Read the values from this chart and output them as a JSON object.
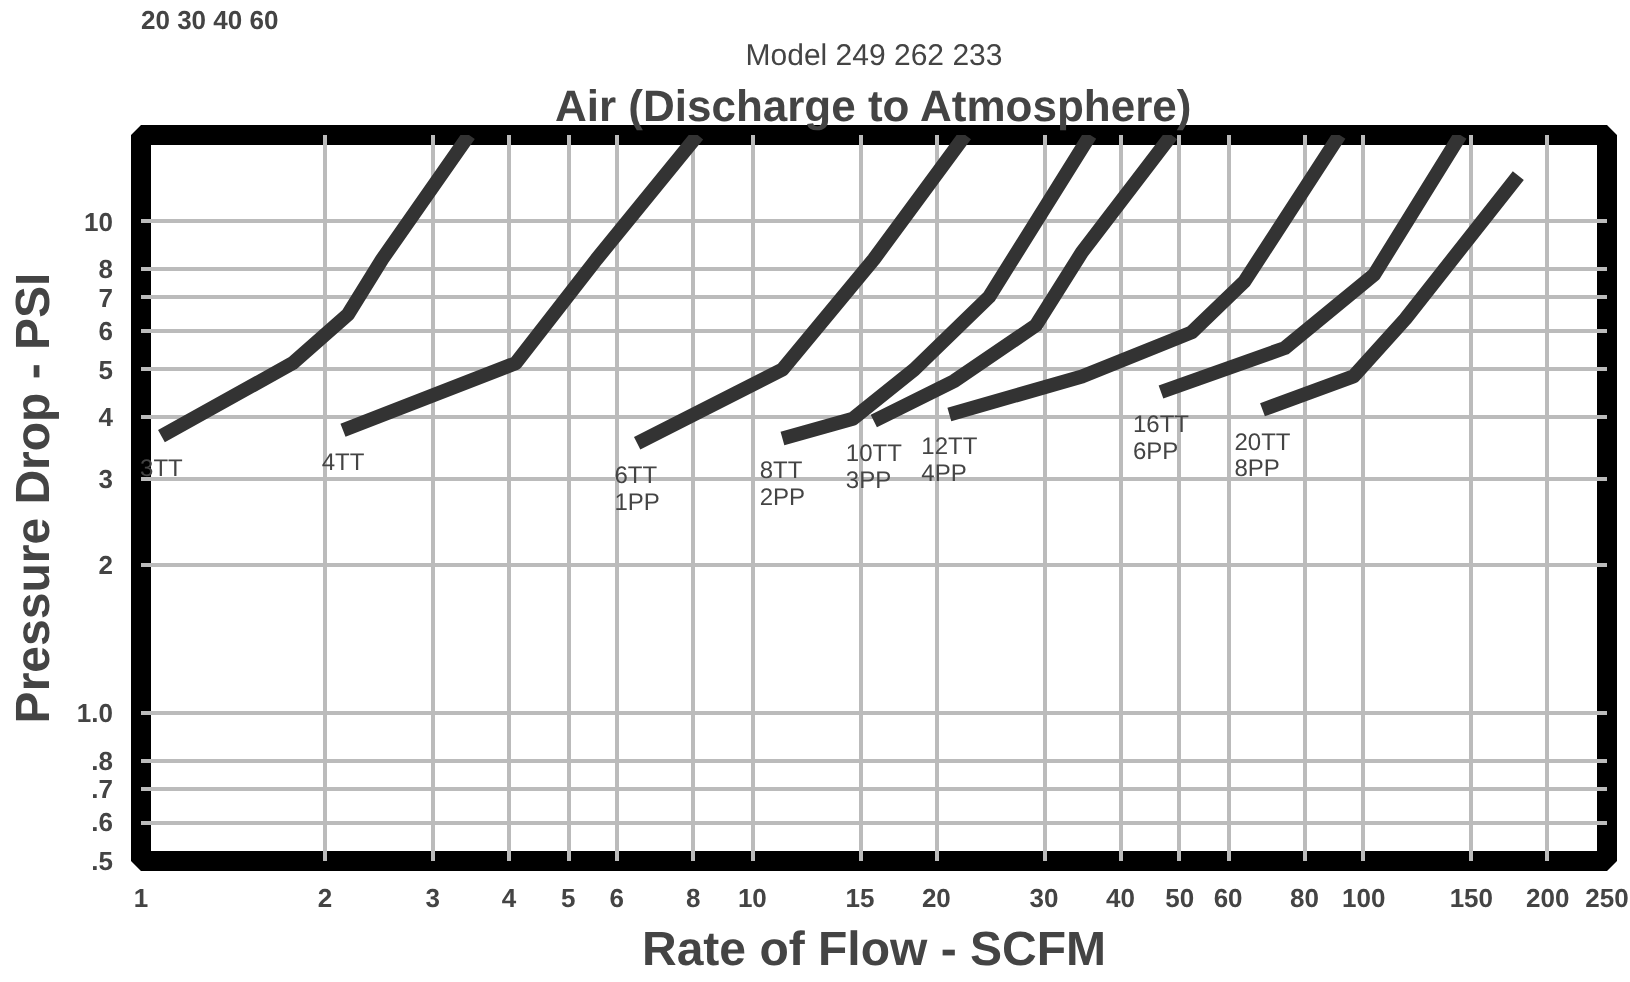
{
  "chart_data": {
    "type": "line",
    "title": "Air (Discharge to Atmosphere)",
    "subtitle": "Model 249 262 233",
    "xlabel": "Rate of Flow - SCFM",
    "ylabel": "Pressure Drop - PSI",
    "annotations": [
      "20    30  40      60"
    ],
    "log": "xy",
    "grid": true,
    "marker": "none",
    "line_style": "solid",
    "xlim": [
      1,
      250
    ],
    "ylim": [
      0.5,
      15
    ],
    "xticks": [
      1,
      2,
      3,
      4,
      5,
      6,
      8,
      10,
      15,
      20,
      30,
      40,
      50,
      60,
      80,
      100,
      150,
      200,
      250
    ],
    "yticks": [
      {
        "value": 0.5,
        "label": ".5"
      },
      {
        "value": 0.6,
        "label": ".6"
      },
      {
        "value": 0.7,
        "label": ".7"
      },
      {
        "value": 0.8,
        "label": ".8"
      },
      {
        "value": 1,
        "label": "1.0"
      },
      2,
      3,
      4,
      5,
      6,
      7,
      8,
      10
    ],
    "series": [
      {
        "name": "3TT",
        "color": "#333333",
        "x": [
          1.08,
          1.77,
          2.18,
          2.48,
          3.44
        ],
        "values": [
          3.66,
          5.15,
          6.47,
          8.38,
          15
        ]
      },
      {
        "name": "4TT",
        "color": "#333333",
        "x": [
          2.14,
          4.1,
          5.56,
          8.14
        ],
        "values": [
          3.76,
          5.15,
          8.38,
          15
        ]
      },
      {
        "name": "6TT 1PP",
        "color": "#333333",
        "x": [
          6.48,
          11.2,
          15.8,
          22.3
        ],
        "values": [
          3.54,
          5.0,
          8.38,
          15
        ]
      },
      {
        "name": "8TT 2PP",
        "color": "#333333",
        "x": [
          11.2,
          14.6,
          18.4,
          24.4,
          35.7
        ],
        "values": [
          3.62,
          3.97,
          5.0,
          7.03,
          15
        ]
      },
      {
        "name": "10TT 3PP",
        "color": "#333333",
        "x": [
          15.8,
          21.4,
          29.1,
          34.6,
          48.5
        ],
        "values": [
          3.93,
          4.74,
          6.15,
          8.66,
          15
        ]
      },
      {
        "name": "12TT 4PP",
        "color": "#333333",
        "x": [
          21.0,
          34.6,
          52.3,
          63.8,
          91.3
        ],
        "values": [
          4.05,
          4.84,
          5.95,
          7.55,
          15
        ]
      },
      {
        "name": "16TT 6PP",
        "color": "#333333",
        "x": [
          46.6,
          74.3,
          104,
          144
        ],
        "values": [
          4.5,
          5.53,
          7.8,
          15
        ]
      },
      {
        "name": "20TT 8PP",
        "color": "#333333",
        "x": [
          68.3,
          96.2,
          117,
          179
        ],
        "values": [
          4.14,
          4.84,
          6.34,
          12.4
        ]
      }
    ]
  }
}
